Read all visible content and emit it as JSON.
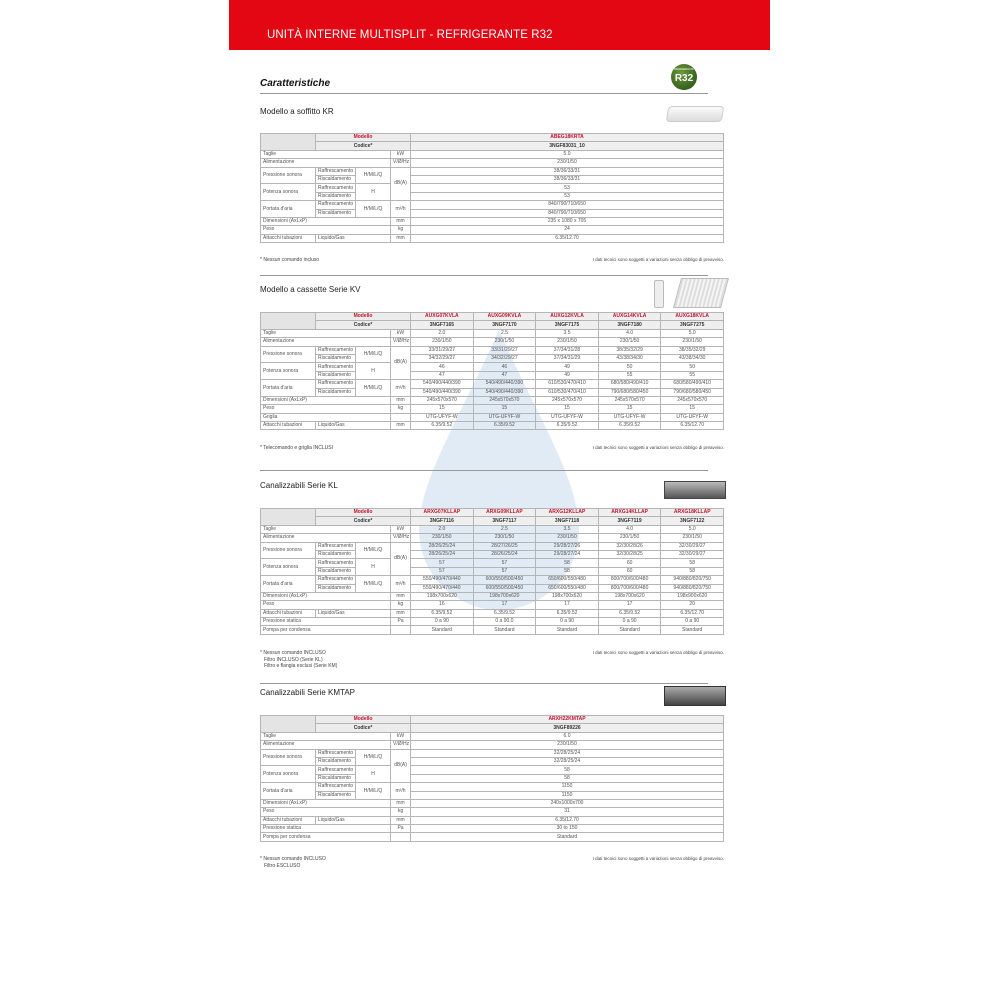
{
  "header": {
    "title": "UNITÀ INTERNE MULTISPLIT - REFRIGERANTE R32",
    "brand_color": "#e30613"
  },
  "badge": {
    "small": "REFRIGERANTE",
    "text": "R32"
  },
  "section_title": "Caratteristiche",
  "disclaimer": "I dati tecnici sono soggetti a variazioni senza obbligo di preavviso.",
  "tables": [
    {
      "title": "Modello a soffitto KR",
      "model_label": "Modello",
      "code_label": "Codice*",
      "models": [
        "ABEG18KRTA"
      ],
      "codes": [
        "3NGF83031_10"
      ],
      "rows": [
        {
          "label": "Taglie",
          "unit": "kW",
          "values": [
            "5.0"
          ]
        },
        {
          "label": "Alimentazione",
          "unit": "V/Ø/Hz",
          "values": [
            "230/1/50"
          ]
        },
        {
          "label": "Pressione sonora",
          "mode": "H/M/L/Q",
          "unit": "dB(A)",
          "subs": [
            {
              "sub": "Raffrescamento",
              "values": [
                "38/36/33/31"
              ]
            },
            {
              "sub": "Riscaldamento",
              "values": [
                "38/36/33/31"
              ]
            }
          ]
        },
        {
          "label": "Potenza sonora",
          "mode": "H",
          "subs": [
            {
              "sub": "Raffrescamento",
              "values": [
                "53"
              ]
            },
            {
              "sub": "Riscaldamento",
              "values": [
                "53"
              ]
            }
          ]
        },
        {
          "label": "Portata d'aria",
          "mode": "H/M/L/Q",
          "unit": "m³/h",
          "subs": [
            {
              "sub": "Raffrescamento",
              "values": [
                "840/790/710/650"
              ]
            },
            {
              "sub": "Riscaldamento",
              "values": [
                "840/790/710/650"
              ]
            }
          ]
        },
        {
          "label": "Dimensioni (AxLxP)",
          "unit": "mm",
          "values": [
            "235 x 1080 x 705"
          ]
        },
        {
          "label": "Peso",
          "unit": "kg",
          "values": [
            "24"
          ]
        },
        {
          "label": "Attacchi tubazioni",
          "sub": "Liquido/Gas",
          "unit": "mm",
          "values": [
            "6.35/12.70"
          ]
        }
      ],
      "notes": [
        "* Nessun comando incluso"
      ]
    },
    {
      "title": "Modello a cassette Serie KV",
      "model_label": "Modello",
      "code_label": "Codice*",
      "models": [
        "AUXG07KVLA",
        "AUXG09KVLA",
        "AUXG12KVLA",
        "AUXG14KVLA",
        "AUXG18KVLA"
      ],
      "codes": [
        "3NGF7165",
        "3NGF7170",
        "3NGF7175",
        "3NGF7180",
        "3NGF7275"
      ],
      "rows": [
        {
          "label": "Taglie",
          "unit": "kW",
          "values": [
            "2.0",
            "2.5",
            "3.5",
            "4.0",
            "5.0"
          ]
        },
        {
          "label": "Alimentazione",
          "unit": "V/Ø/Hz",
          "values": [
            "230/1/50",
            "230/1/50",
            "230/1/50",
            "230/1/50",
            "230/1/50"
          ]
        },
        {
          "label": "Pressione sonora",
          "mode": "H/M/L/Q",
          "unit": "dB(A)",
          "subs": [
            {
              "sub": "Raffrescamento",
              "values": [
                "33/31/29/27",
                "33/31/29/27",
                "37/34/31/28",
                "38/35/32/29",
                "38/35/32/29"
              ]
            },
            {
              "sub": "Riscaldamento",
              "values": [
                "34/32/29/27",
                "34/32/29/27",
                "37/34/31/29",
                "43/38/34/30",
                "43/38/34/30"
              ]
            }
          ]
        },
        {
          "label": "Potenza sonora",
          "mode": "H",
          "subs": [
            {
              "sub": "Raffrescamento",
              "values": [
                "46",
                "46",
                "49",
                "50",
                "50"
              ]
            },
            {
              "sub": "Riscaldamento",
              "values": [
                "47",
                "47",
                "49",
                "55",
                "55"
              ]
            }
          ]
        },
        {
          "label": "Portata d'aria",
          "mode": "H/M/L/Q",
          "unit": "m³/h",
          "subs": [
            {
              "sub": "Raffrescamento",
              "values": [
                "540/490/440/390",
                "540/490/440/390",
                "610/530/470/410",
                "680/580/490/410",
                "680/580/490/410"
              ]
            },
            {
              "sub": "Riscaldamento",
              "values": [
                "540/490/440/390",
                "540/490/440/390",
                "610/530/470/410",
                "790/680/580/450",
                "790/680/580/450"
              ]
            }
          ]
        },
        {
          "label": "Dimensioni (AxLxP)",
          "unit": "mm",
          "values": [
            "245x570x570",
            "245x570x570",
            "245x570x570",
            "245x570x570",
            "245x570x570"
          ]
        },
        {
          "label": "Peso",
          "unit": "kg",
          "values": [
            "15",
            "15",
            "15",
            "15",
            "15"
          ]
        },
        {
          "label": "Griglia",
          "unit": "",
          "values": [
            "UTG-UFYF-W",
            "UTG-UFYF-W",
            "UTG-UFYF-W",
            "UTG-UFYF-W",
            "UTG-UFYF-W"
          ]
        },
        {
          "label": "Attacchi tubazioni",
          "sub": "Liquido/Gas",
          "unit": "mm",
          "values": [
            "6.35/9.52",
            "6.35/9.52",
            "6.35/9.52",
            "6.35/9.52",
            "6.35/12.70"
          ]
        }
      ],
      "notes": [
        "* Telecomando e griglia INCLUSI"
      ]
    },
    {
      "title": "Canalizzabili Serie KL",
      "model_label": "Modello",
      "code_label": "Codice*",
      "models": [
        "ARXG07KLLAP",
        "ARXG09KLLAP",
        "ARXG12KLLAP",
        "ARXG14KLLAP",
        "ARXG18KLLAP"
      ],
      "codes": [
        "3NGF7116",
        "3NGF7117",
        "3NGF7118",
        "3NGF7119",
        "3NGF7122"
      ],
      "rows": [
        {
          "label": "Taglie",
          "unit": "kW",
          "values": [
            "2.0",
            "2.5",
            "3.5",
            "4.0",
            "5.0"
          ]
        },
        {
          "label": "Alimentazione",
          "unit": "V/Ø/Hz",
          "values": [
            "230/1/50",
            "230/1/50",
            "230/1/50",
            "230/1/50",
            "230/1/50"
          ]
        },
        {
          "label": "Pressione sonora",
          "mode": "H/M/L/Q",
          "unit": "dB(A)",
          "subs": [
            {
              "sub": "Raffrescamento",
              "values": [
                "28/26/25/24",
                "28/27/26/25",
                "29/28/27/26",
                "32/30/28/26",
                "32/30/29/27"
              ]
            },
            {
              "sub": "Riscaldamento",
              "values": [
                "28/26/25/24",
                "28/26/25/24",
                "29/28/27/24",
                "32/30/28/25",
                "32/30/29/27"
              ]
            }
          ]
        },
        {
          "label": "Potenza sonora",
          "mode": "H",
          "subs": [
            {
              "sub": "Raffrescamento",
              "values": [
                "57",
                "57",
                "58",
                "60",
                "58"
              ]
            },
            {
              "sub": "Riscaldamento",
              "values": [
                "57",
                "57",
                "58",
                "60",
                "58"
              ]
            }
          ]
        },
        {
          "label": "Portata d'aria",
          "mode": "H/M/L/Q",
          "unit": "m³/h",
          "subs": [
            {
              "sub": "Raffrescamento",
              "values": [
                "550/490/470/440",
                "600/550/500/450",
                "650/600/550/480",
                "800/700/600/480",
                "940/880/820/750"
              ]
            },
            {
              "sub": "Riscaldamento",
              "values": [
                "550/490/470/440",
                "600/550/500/450",
                "650/600/550/480",
                "800/700/600/480",
                "940/880/820/750"
              ]
            }
          ]
        },
        {
          "label": "Dimensioni (AxLxP)",
          "unit": "mm",
          "values": [
            "198x700x620",
            "198x700x620",
            "198x700x620",
            "198x700x620",
            "198x900x620"
          ]
        },
        {
          "label": "Peso",
          "unit": "kg",
          "values": [
            "16",
            "17",
            "17",
            "17",
            "20"
          ]
        },
        {
          "label": "Attacchi tubazioni",
          "sub": "Liquido/Gas",
          "unit": "mm",
          "values": [
            "6.35/9.52",
            "6.35/9.52",
            "6.35/9.52",
            "6.35/9.52",
            "6.35/12.70"
          ]
        },
        {
          "label": "Pressione statica",
          "unit": "Pa",
          "values": [
            "0 a 90",
            "0 a 90.0",
            "0 a 90",
            "0 a 90",
            "0 a 90"
          ]
        },
        {
          "label": "Pompa per condensa",
          "unit": "",
          "values": [
            "Standard",
            "Standard",
            "Standard",
            "Standard",
            "Standard"
          ]
        }
      ],
      "notes": [
        "* Nessun comando INCLUSO",
        "Filtro INCLUSO (Serie KL)",
        "Filtro e flangia esclusi (Serie KM)"
      ]
    },
    {
      "title": "Canalizzabili Serie KMTAP",
      "model_label": "Modello",
      "code_label": "Codice*",
      "models": [
        "ARXH22KMTAP"
      ],
      "codes": [
        "3NGF89226"
      ],
      "rows": [
        {
          "label": "Taglie",
          "unit": "kW",
          "values": [
            "6.0"
          ]
        },
        {
          "label": "Alimentazione",
          "unit": "V/Ø/Hz",
          "values": [
            "230/1/50"
          ]
        },
        {
          "label": "Pressione sonora",
          "mode": "H/M/L/Q",
          "unit": "dB(A)",
          "subs": [
            {
              "sub": "Raffrescamento",
              "values": [
                "32/28/25/24"
              ]
            },
            {
              "sub": "Riscaldamento",
              "values": [
                "32/28/25/24"
              ]
            }
          ]
        },
        {
          "label": "Potenza sonora",
          "mode": "H",
          "subs": [
            {
              "sub": "Raffrescamento",
              "values": [
                "58"
              ]
            },
            {
              "sub": "Riscaldamento",
              "values": [
                "58"
              ]
            }
          ]
        },
        {
          "label": "Portata d'aria",
          "mode": "H/M/L/Q",
          "unit": "m³/h",
          "subs": [
            {
              "sub": "Raffrescamento",
              "values": [
                "1150"
              ]
            },
            {
              "sub": "Riscaldamento",
              "values": [
                "1150"
              ]
            }
          ]
        },
        {
          "label": "Dimensioni (AxLxP)",
          "unit": "mm",
          "values": [
            "240x1000x700"
          ]
        },
        {
          "label": "Peso",
          "unit": "kg",
          "values": [
            "31"
          ]
        },
        {
          "label": "Attacchi tubazioni",
          "sub": "Liquido/Gas",
          "unit": "mm",
          "values": [
            "6.35/12.70"
          ]
        },
        {
          "label": "Pressione statica",
          "unit": "Pa",
          "values": [
            "30 to 150"
          ]
        },
        {
          "label": "Pompa per condensa",
          "unit": "",
          "values": [
            "Standard"
          ]
        }
      ],
      "notes": [
        "* Nessun comando INCLUSO",
        "Filtro ESCLUSO"
      ]
    }
  ]
}
